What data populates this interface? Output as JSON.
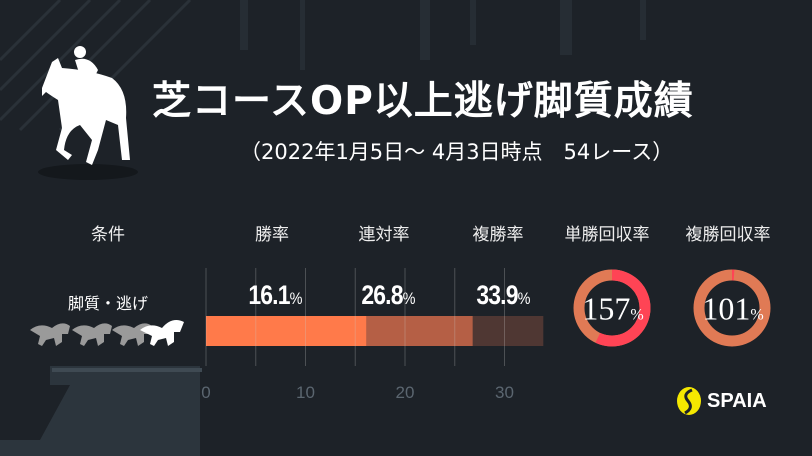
{
  "title": "芝コースOP以上逃げ脚質成績",
  "subtitle": "（2022年1月5日～ 4月3日時点　54レース）",
  "headers": {
    "condition": "条件",
    "win_rate": "勝率",
    "top2_rate": "連対率",
    "top3_rate": "複勝率",
    "win_return": "単勝回収率",
    "place_return": "複勝回収率"
  },
  "condition_label": "脚質・逃げ",
  "brand": "SPAIA",
  "colors": {
    "background": "#1d2228",
    "win_bar": "#ff7a4a",
    "top2_bar": "#b55f45",
    "top3_bar": "#4f3733",
    "donut_base": "#e07a55",
    "donut_over": "#ff4455",
    "logo_yellow": "#f5e800"
  },
  "chart_data": [
    {
      "type": "bar",
      "orientation": "horizontal",
      "stacked": "overlapping",
      "categories": [
        "勝率",
        "連対率",
        "複勝率"
      ],
      "values": [
        16.1,
        26.8,
        33.9
      ],
      "labels": [
        "16.1",
        "26.8",
        "33.9"
      ],
      "unit": "%",
      "xlim": [
        0,
        34
      ],
      "xticks": [
        "0",
        "10",
        "20",
        "30"
      ],
      "grid": true
    },
    {
      "type": "pie",
      "variant": "donut",
      "items": [
        {
          "name": "単勝回収率",
          "value": 157,
          "label": "157"
        },
        {
          "name": "複勝回収率",
          "value": 101,
          "label": "101"
        }
      ],
      "unit": "%"
    }
  ]
}
